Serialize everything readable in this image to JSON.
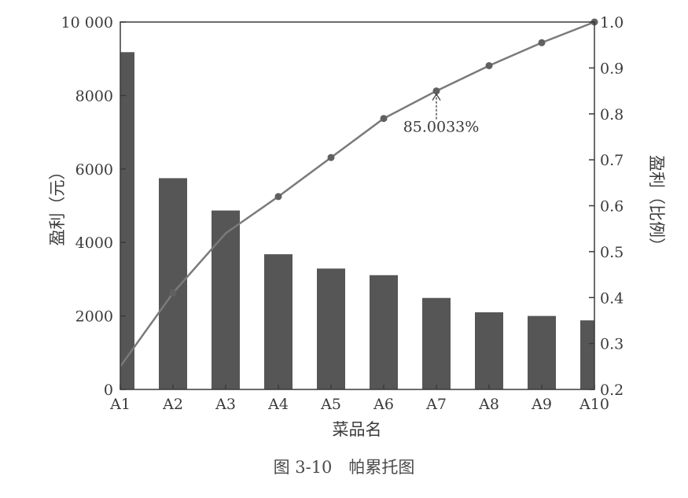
{
  "chart_data": {
    "type": "bar",
    "categories": [
      "A1",
      "A2",
      "A3",
      "A4",
      "A5",
      "A6",
      "A7",
      "A8",
      "A9",
      "A10"
    ],
    "series": [
      {
        "values": [
          9180,
          5750,
          4870,
          3680,
          3290,
          3110,
          2490,
          2100,
          2000,
          1880
        ]
      },
      {
        "values": [
          0.25,
          0.41,
          0.54,
          0.62,
          0.705,
          0.79,
          0.85,
          0.905,
          0.955,
          1.0
        ],
        "axis": "right",
        "marker": "circle"
      }
    ],
    "xlabel": "菜品名",
    "ylabel": "盈利（元）",
    "ylabel_right": "盈利（比例）",
    "ylim": [
      0,
      10000
    ],
    "ylim_right": [
      0.2,
      1.0
    ],
    "yticks": [
      "0",
      "2000",
      "4000",
      "6000",
      "8000",
      "10 000"
    ],
    "yticks_right": [
      "0.2",
      "0.3",
      "0.4",
      "0.5",
      "0.6",
      "0.7",
      "0.8",
      "0.9",
      "1.0"
    ],
    "annotation": {
      "text": "85.0033%",
      "category": "A7"
    },
    "grid": false
  },
  "caption": "图 3-10　帕累托图",
  "colors": {
    "bar": "#565656",
    "line": "#7a7a7a",
    "marker": "#606060",
    "axis": "#3a3a3a"
  }
}
